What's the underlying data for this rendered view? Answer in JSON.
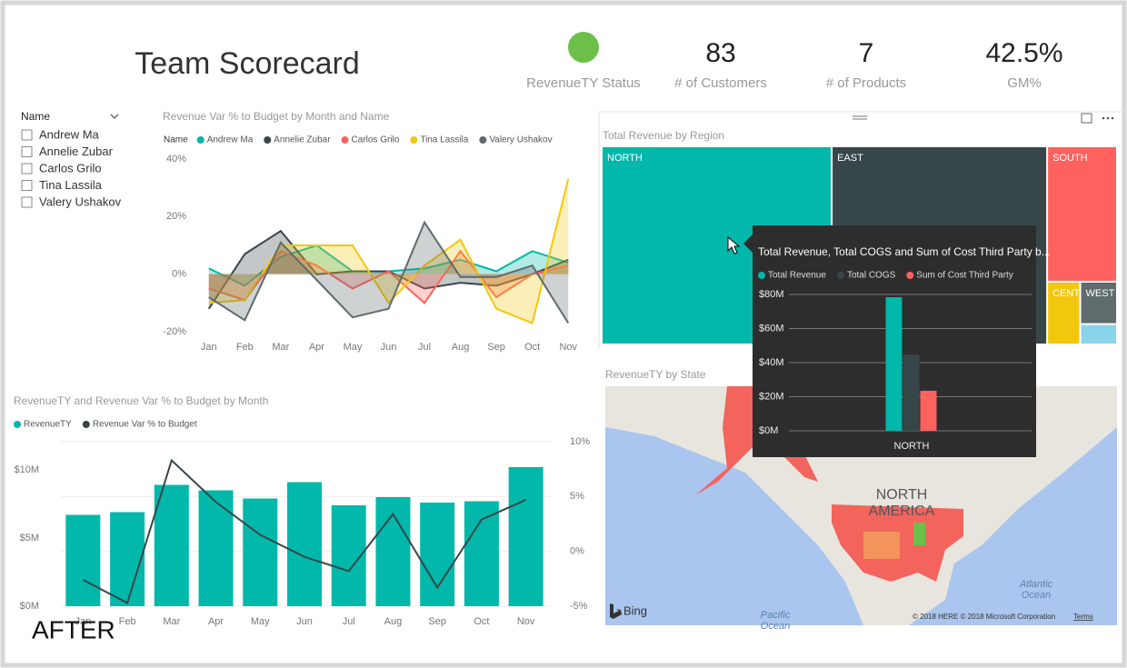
{
  "header": {
    "title": "Team Scorecard"
  },
  "kpis": [
    {
      "label": "RevenueTY Status",
      "status_color": "#6cc04a"
    },
    {
      "value": "83",
      "label": "# of Customers"
    },
    {
      "value": "7",
      "label": "# of Products"
    },
    {
      "value": "42.5%",
      "label": "GM%"
    }
  ],
  "slicer": {
    "title": "Name",
    "items": [
      "Andrew Ma",
      "Annelie Zubar",
      "Carlos Grilo",
      "Tina Lassila",
      "Valery Ushakov"
    ]
  },
  "chart_data": [
    {
      "type": "area",
      "title": "Revenue Var % to Budget by Month and Name",
      "legend_title": "Name",
      "categories": [
        "Jan",
        "Feb",
        "Mar",
        "Apr",
        "May",
        "Jun",
        "Jul",
        "Aug",
        "Sep",
        "Oct",
        "Nov"
      ],
      "ylim": [
        -20,
        40
      ],
      "yticks": [
        {
          "value": -20,
          "label": "-20%"
        },
        {
          "value": 0,
          "label": "0%"
        },
        {
          "value": 20,
          "label": "20%"
        },
        {
          "value": 40,
          "label": "40%"
        }
      ],
      "series": [
        {
          "name": "Andrew Ma",
          "color": "#01b8aa",
          "values": [
            2,
            -4,
            6,
            10,
            1,
            1,
            2,
            5,
            1,
            8,
            4
          ]
        },
        {
          "name": "Annelie Zubar",
          "color": "#374649",
          "values": [
            -12,
            7,
            15,
            0,
            1,
            1,
            -5,
            -3,
            -4,
            0,
            5
          ]
        },
        {
          "name": "Carlos Grilo",
          "color": "#fd625e",
          "values": [
            -5,
            -9,
            8,
            3,
            -5,
            1,
            -10,
            8,
            -8,
            0,
            3
          ]
        },
        {
          "name": "Tina Lassila",
          "color": "#f2c80f",
          "values": [
            -10,
            -9,
            10,
            10,
            10,
            -10,
            3,
            12,
            -12,
            -17,
            33
          ]
        },
        {
          "name": "Valery Ushakov",
          "color": "#5f6b6d",
          "values": [
            -8,
            -16,
            11,
            -2,
            -15,
            -12,
            18,
            -1,
            -1,
            3,
            -17
          ]
        }
      ]
    },
    {
      "type": "combo",
      "title": "RevenueTY and Revenue Var % to Budget by Month",
      "categories": [
        "Jan",
        "Feb",
        "Mar",
        "Apr",
        "May",
        "Jun",
        "Jul",
        "Aug",
        "Sep",
        "Oct",
        "Nov"
      ],
      "ylim": [
        0,
        12
      ],
      "yticks": [
        {
          "value": 0,
          "label": "$0M"
        },
        {
          "value": 5,
          "label": "$5M"
        },
        {
          "value": 10,
          "label": "$10M"
        }
      ],
      "y2lim": [
        -5,
        10
      ],
      "y2ticks": [
        {
          "value": -5,
          "label": "-5%"
        },
        {
          "value": 0,
          "label": "0%"
        },
        {
          "value": 5,
          "label": "5%"
        },
        {
          "value": 10,
          "label": "10%"
        }
      ],
      "grid": true,
      "series": [
        {
          "name": "RevenueTY",
          "color": "#01b8aa",
          "kind": "bar",
          "values": [
            6.7,
            6.9,
            8.9,
            8.5,
            7.9,
            9.1,
            7.4,
            8.0,
            7.6,
            7.7,
            10.2
          ]
        },
        {
          "name": "Revenue Var % to Budget",
          "color": "#374649",
          "kind": "line",
          "axis": "y2",
          "values": [
            -2.6,
            -4.7,
            8.3,
            4.5,
            1.5,
            -0.5,
            -1.8,
            3.4,
            -3.3,
            2.9,
            4.7
          ]
        }
      ]
    },
    {
      "type": "treemap",
      "title": "Total Revenue by Region",
      "categories": [
        "NORTH",
        "EAST",
        "SOUTH",
        "CENTRAL",
        "WEST",
        null
      ],
      "values": [
        79,
        74,
        16.4,
        3.6,
        2.7,
        1.3
      ],
      "colors": [
        "#01b8aa",
        "#374649",
        "#fd625e",
        "#f2c80f",
        "#5f6b6d",
        "#8ad4eb"
      ]
    },
    {
      "type": "bar",
      "title": "Total Revenue, Total COGS and Sum of Cost Third Party b...",
      "categories": [
        "NORTH"
      ],
      "ylim": [
        0,
        80
      ],
      "yticks": [
        {
          "value": 0,
          "label": "$0M"
        },
        {
          "value": 20,
          "label": "$20M"
        },
        {
          "value": 40,
          "label": "$40M"
        },
        {
          "value": 60,
          "label": "$60M"
        },
        {
          "value": 80,
          "label": "$80M"
        }
      ],
      "grid": true,
      "series": [
        {
          "name": "Total Revenue",
          "color": "#01b8aa",
          "values": [
            78.4
          ]
        },
        {
          "name": "Total COGS",
          "color": "#374649",
          "values": [
            44.8
          ]
        },
        {
          "name": "Sum of Cost Third Party",
          "color": "#fd625e",
          "values": [
            23.5
          ]
        }
      ]
    }
  ],
  "map": {
    "title": "RevenueTY by State",
    "region_label": [
      "NORTH",
      "AMERICA"
    ],
    "pacific": [
      "Pacific",
      "Ocean"
    ],
    "atlantic": [
      "Atlantic",
      "Ocean"
    ],
    "logo": "Bing",
    "attribution": "© 2018 HERE © 2018 Microsoft Corporation",
    "terms": "Terms"
  },
  "caption": "AFTER"
}
